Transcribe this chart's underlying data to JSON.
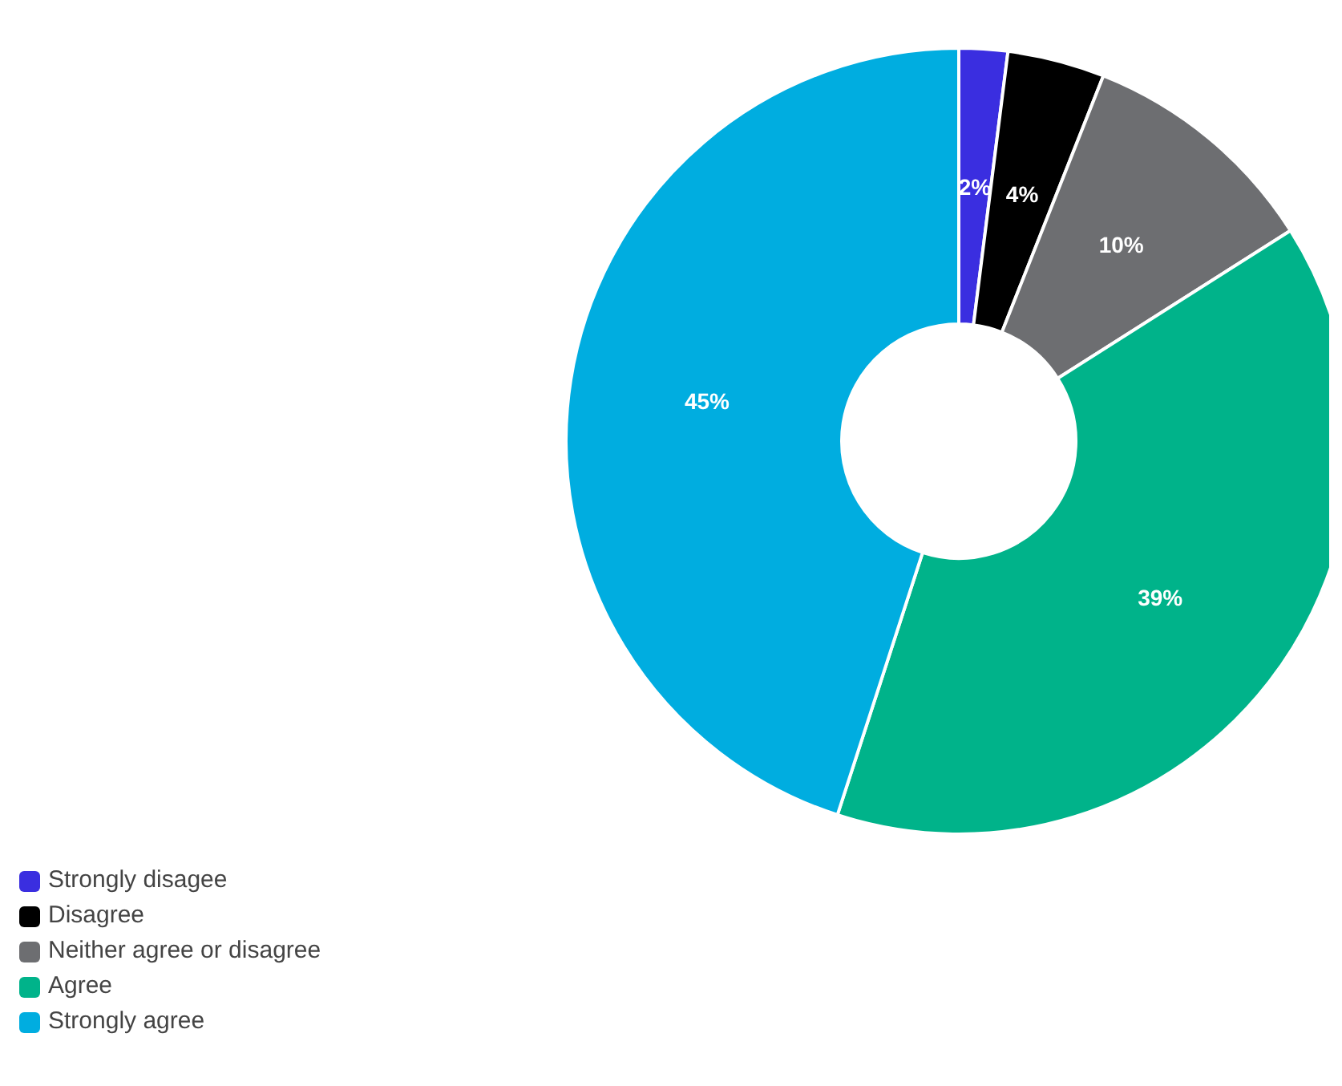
{
  "chart_data": {
    "type": "donut",
    "categories": [
      "Strongly disagee",
      "Disagree",
      "Neither agree or disagree",
      "Agree",
      "Strongly agree"
    ],
    "values": [
      2,
      4,
      10,
      39,
      45
    ],
    "colors": [
      "#3a2ee0",
      "#000000",
      "#6d6e71",
      "#00b38a",
      "#00ade0"
    ],
    "value_labels": [
      "2%",
      "4%",
      "10%",
      "39%",
      "45%"
    ],
    "legend": "bottom left"
  }
}
